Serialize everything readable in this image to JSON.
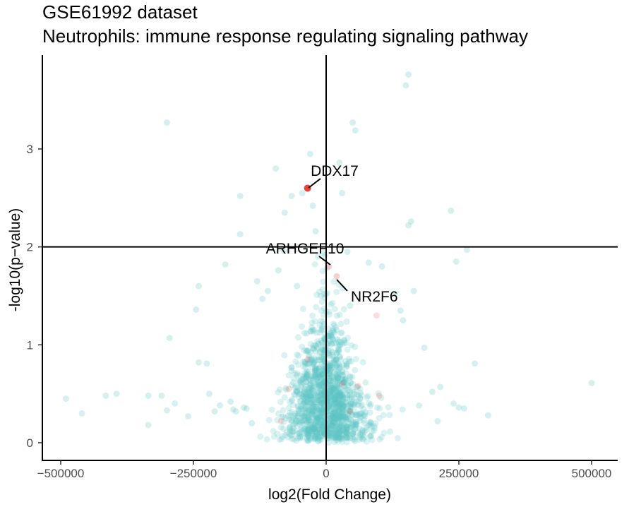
{
  "chart_data": {
    "type": "scatter",
    "title": "GSE61992 dataset",
    "subtitle": "Neutrophils: immune response regulating signaling pathway",
    "xlabel": "log2(Fold Change)",
    "ylabel": "-log10(p−value)",
    "xlim": [
      -500000,
      500000
    ],
    "ylim": [
      0,
      3.75
    ],
    "xticks": [
      -500000,
      -250000,
      0,
      250000,
      500000
    ],
    "xtick_labels": [
      "−500000",
      "−250000",
      "0",
      "250000",
      "500000"
    ],
    "yticks": [
      0,
      1,
      2,
      3
    ],
    "ytick_labels": [
      "0",
      "1",
      "2",
      "3"
    ],
    "reference_lines": {
      "x": 0,
      "y": 2
    },
    "colors": {
      "background_points": "#5bc4c4",
      "highlight_points": "#e8443a",
      "axis": "#000000"
    },
    "highlighted": [
      {
        "gene": "DDX17",
        "x": -35000,
        "y": 2.6
      },
      {
        "gene": "ARHGEF10",
        "x": 5000,
        "y": 1.8
      },
      {
        "gene": "NR2F6",
        "x": 20000,
        "y": 1.7
      }
    ],
    "background_points": [
      [
        -490000,
        0.45
      ],
      [
        -460000,
        0.3
      ],
      [
        -415000,
        0.48
      ],
      [
        -395000,
        0.5
      ],
      [
        -335000,
        0.18
      ],
      [
        -335000,
        0.48
      ],
      [
        -310000,
        0.48
      ],
      [
        -300000,
        0.33
      ],
      [
        -300000,
        3.27
      ],
      [
        -295000,
        1.07
      ],
      [
        -285000,
        0.4
      ],
      [
        -260000,
        0.27
      ],
      [
        -240000,
        1.6
      ],
      [
        -245000,
        1.36
      ],
      [
        -240000,
        0.82
      ],
      [
        -225000,
        0.81
      ],
      [
        -220000,
        0.5
      ],
      [
        -210000,
        0.32
      ],
      [
        -200000,
        0.38
      ],
      [
        -190000,
        1.82
      ],
      [
        -180000,
        0.42
      ],
      [
        -175000,
        0.34
      ],
      [
        -170000,
        0.32
      ],
      [
        -162000,
        2.52
      ],
      [
        -162000,
        2.13
      ],
      [
        -155000,
        0.36
      ],
      [
        -150000,
        0.35
      ],
      [
        -140000,
        0.2
      ],
      [
        -130000,
        1.65
      ],
      [
        -120000,
        1.47
      ],
      [
        -110000,
        1.55
      ],
      [
        -95000,
        2.8
      ],
      [
        -90000,
        1.76
      ],
      [
        -80000,
        1.96
      ],
      [
        -78000,
        2.35
      ],
      [
        -65000,
        2.52
      ],
      [
        -55000,
        1.6
      ],
      [
        -45000,
        2.55
      ],
      [
        -30000,
        2.95
      ],
      [
        -25000,
        2.42
      ],
      [
        -20000,
        2.16
      ],
      [
        -15000,
        1.9
      ],
      [
        -10000,
        1.5
      ],
      [
        25000,
        2.86
      ],
      [
        30000,
        2.55
      ],
      [
        40000,
        1.95
      ],
      [
        45000,
        1.4
      ],
      [
        50000,
        3.27
      ],
      [
        55000,
        3.19
      ],
      [
        80000,
        1.84
      ],
      [
        105000,
        1.8
      ],
      [
        130000,
        1.52
      ],
      [
        140000,
        1.35
      ],
      [
        145000,
        1.25
      ],
      [
        150000,
        3.65
      ],
      [
        155000,
        3.76
      ],
      [
        155000,
        2.22
      ],
      [
        160000,
        2.26
      ],
      [
        165000,
        1.55
      ],
      [
        175000,
        0.38
      ],
      [
        185000,
        0.97
      ],
      [
        200000,
        0.52
      ],
      [
        210000,
        0.22
      ],
      [
        215000,
        0.57
      ],
      [
        235000,
        2.37
      ],
      [
        240000,
        0.4
      ],
      [
        245000,
        1.85
      ],
      [
        250000,
        0.36
      ],
      [
        260000,
        0.35
      ],
      [
        265000,
        1.97
      ],
      [
        280000,
        0.81
      ],
      [
        305000,
        0.28
      ],
      [
        500000,
        0.61
      ]
    ]
  }
}
